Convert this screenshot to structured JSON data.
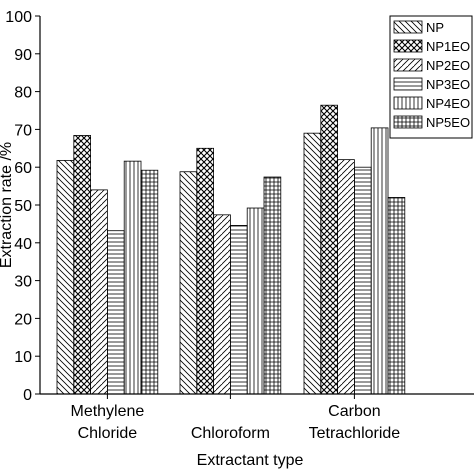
{
  "chart_data": {
    "type": "bar",
    "xlabel": "Extractant type",
    "ylabel": "Extraction rate /%",
    "ylim": [
      0,
      100
    ],
    "yticks": [
      "0",
      "10",
      "20",
      "30",
      "40",
      "50",
      "60",
      "70",
      "80",
      "90",
      "100"
    ],
    "categories": [
      [
        "Methylene",
        "Chloride"
      ],
      [
        "Chloroform"
      ],
      [
        "Carbon",
        "Tetrachloride"
      ]
    ],
    "series": [
      {
        "name": "NP",
        "pattern": "diag-back",
        "values": [
          61.8,
          58.8,
          69.0
        ]
      },
      {
        "name": "NP1EO",
        "pattern": "crosshatch",
        "values": [
          68.4,
          65.0,
          76.4
        ]
      },
      {
        "name": "NP2EO",
        "pattern": "diag-fwd",
        "values": [
          54.0,
          47.4,
          62.0
        ]
      },
      {
        "name": "NP3EO",
        "pattern": "horizontal",
        "values": [
          43.2,
          44.6,
          60.0
        ]
      },
      {
        "name": "NP4EO",
        "pattern": "vertical",
        "values": [
          61.6,
          49.2,
          70.4
        ]
      },
      {
        "name": "NP5EO",
        "pattern": "grid",
        "values": [
          59.2,
          57.4,
          52.0
        ]
      }
    ],
    "legend_position": "top-right",
    "grid": false,
    "colors": {
      "ink": "#000000",
      "fill": "#ffffff"
    }
  }
}
